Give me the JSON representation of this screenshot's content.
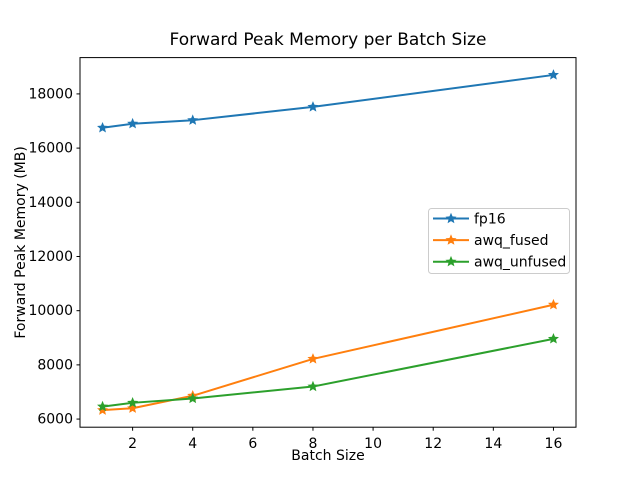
{
  "chart_data": {
    "type": "line",
    "title": "Forward Peak Memory per Batch Size",
    "xlabel": "Batch Size",
    "ylabel": "Forward Peak Memory (MB)",
    "x": [
      1,
      2,
      4,
      8,
      16
    ],
    "series": [
      {
        "name": "fp16",
        "color": "#1f77b4",
        "marker": "star",
        "values": [
          16750,
          16900,
          17030,
          17520,
          18700
        ]
      },
      {
        "name": "awq_fused",
        "color": "#ff7f0e",
        "marker": "star",
        "values": [
          6330,
          6400,
          6860,
          8220,
          10220
        ]
      },
      {
        "name": "awq_unfused",
        "color": "#2ca02c",
        "marker": "star",
        "values": [
          6460,
          6600,
          6760,
          7200,
          8960
        ]
      }
    ],
    "xticks": [
      2,
      4,
      6,
      8,
      10,
      12,
      14,
      16
    ],
    "yticks": [
      6000,
      8000,
      10000,
      12000,
      14000,
      16000,
      18000
    ],
    "xlim": [
      0.25,
      16.75
    ],
    "ylim": [
      5700,
      19340
    ],
    "grid": false,
    "legend_position": "center-right",
    "frame_color": "#000000",
    "legend_border_color": "#cccccc",
    "background_color": "#ffffff"
  }
}
